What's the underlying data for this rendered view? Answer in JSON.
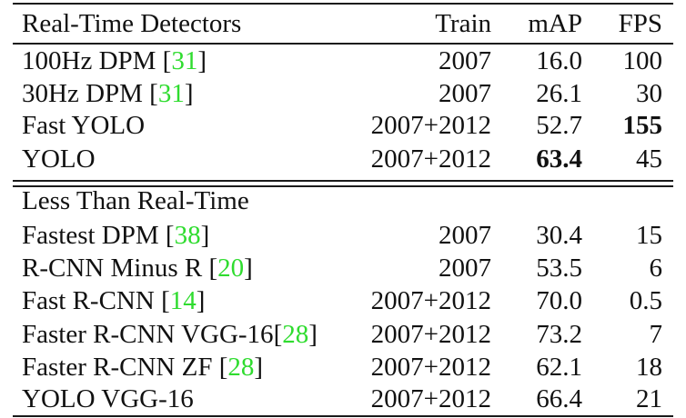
{
  "table": {
    "columns": {
      "name": "Real-Time Detectors",
      "train": "Train",
      "map": "mAP",
      "fps": "FPS"
    },
    "section2_title": "Less Than Real-Time",
    "realtime_rows": [
      {
        "name": "100Hz DPM ",
        "ref": "31",
        "train": "2007",
        "map": "16.0",
        "fps": "100"
      },
      {
        "name": "30Hz DPM ",
        "ref": "31",
        "train": "2007",
        "map": "26.1",
        "fps": "30"
      },
      {
        "name": "Fast YOLO",
        "ref": "",
        "train": "2007+2012",
        "map": "52.7",
        "fps": "155"
      },
      {
        "name": "YOLO",
        "ref": "",
        "train": "2007+2012",
        "map": "63.4",
        "fps": "45"
      }
    ],
    "slow_rows": [
      {
        "name": "Fastest DPM ",
        "ref": "38",
        "train": "2007",
        "map": "30.4",
        "fps": "15"
      },
      {
        "name": "R-CNN Minus R ",
        "ref": "20",
        "train": "2007",
        "map": "53.5",
        "fps": "6"
      },
      {
        "name": "Fast R-CNN ",
        "ref": "14",
        "train": "2007+2012",
        "map": "70.0",
        "fps": "0.5"
      },
      {
        "name": "Faster R-CNN VGG-16",
        "ref": "28",
        "train": "2007+2012",
        "map": "73.2",
        "fps": "7"
      },
      {
        "name": "Faster R-CNN ZF ",
        "ref": "28",
        "train": "2007+2012",
        "map": "62.1",
        "fps": "18"
      },
      {
        "name": "YOLO VGG-16",
        "ref": "",
        "train": "2007+2012",
        "map": "66.4",
        "fps": "21"
      }
    ],
    "colors": {
      "reference_link": "#2fdc2f",
      "text": "#111111",
      "rule": "#1a1a1a"
    }
  }
}
